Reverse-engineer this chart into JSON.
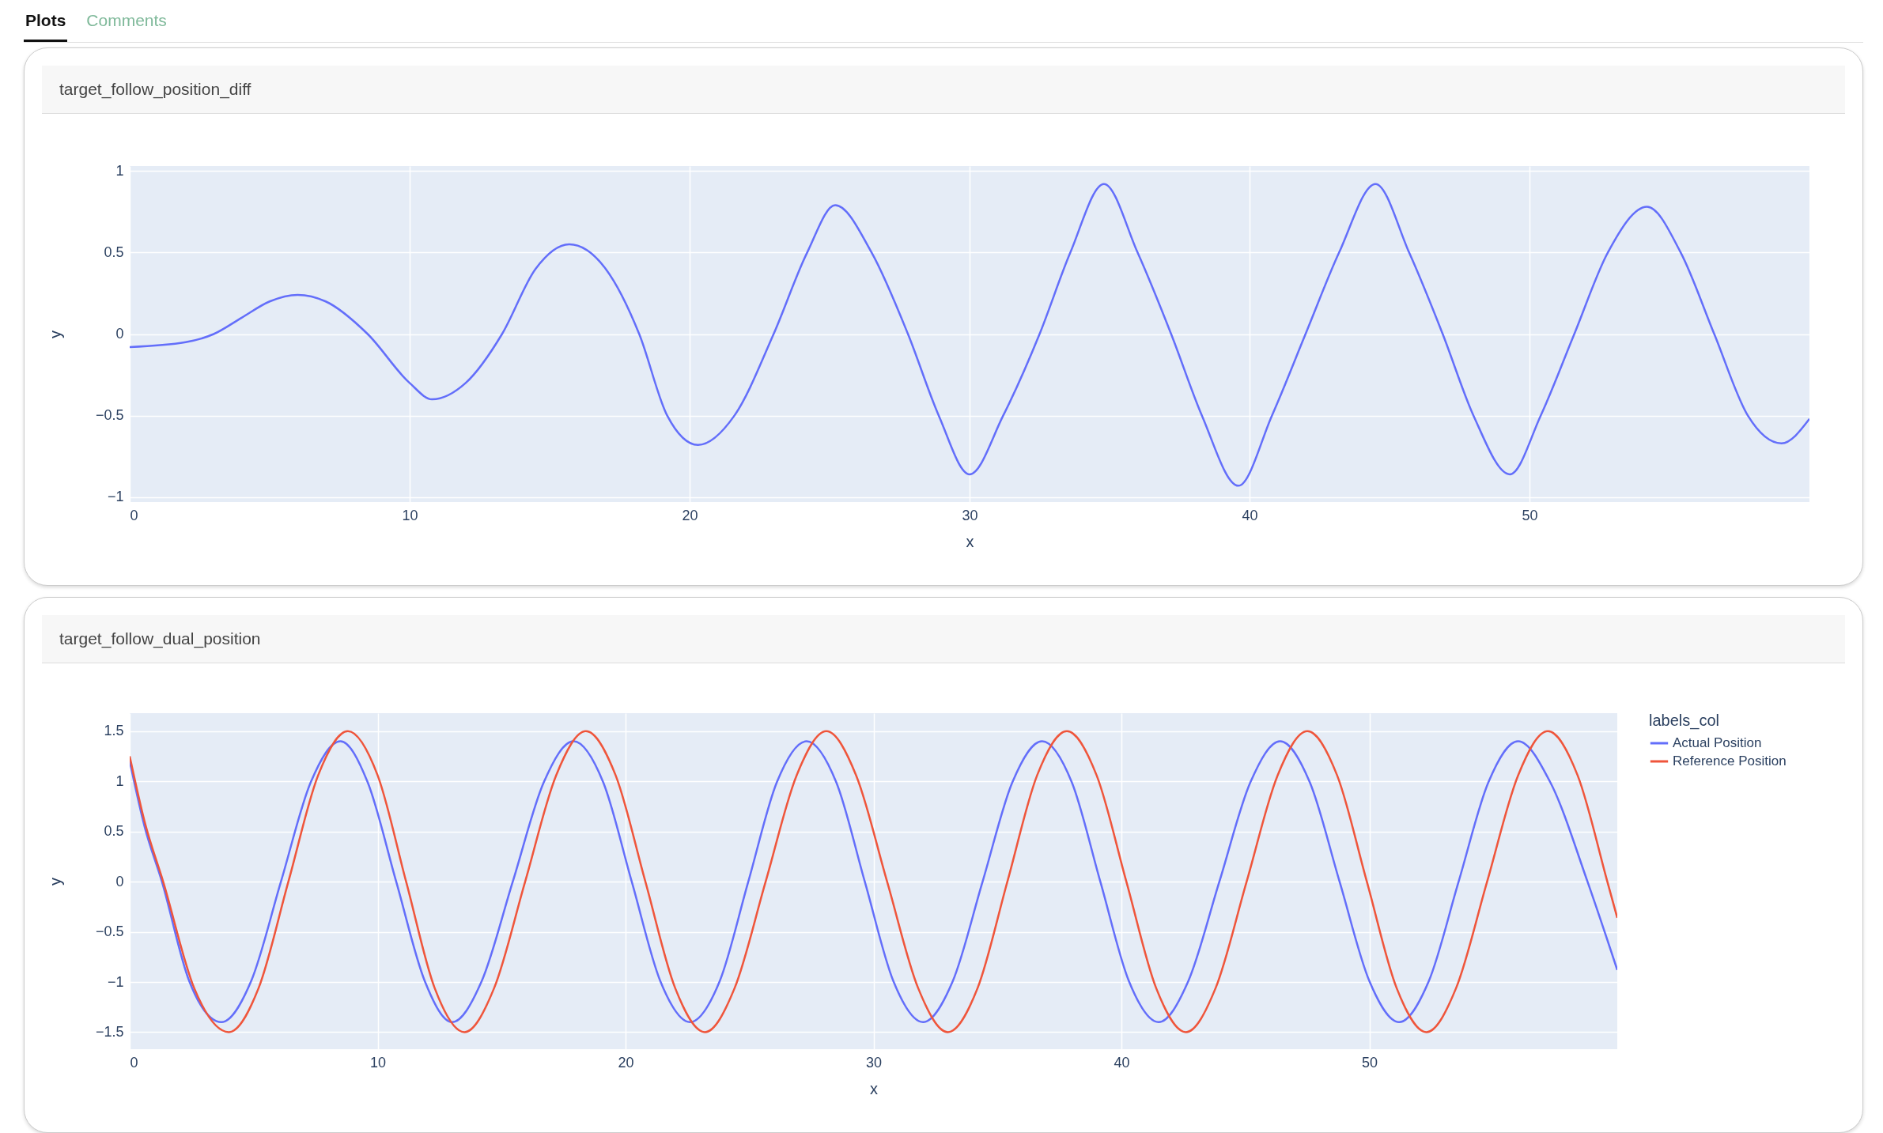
{
  "chart_data": [
    {
      "type": "other",
      "annotations": [
        "Plots",
        "Comments"
      ]
    },
    {
      "type": "line",
      "title": "target_follow_position_diff",
      "xlabel": "x",
      "ylabel": "y",
      "xlim": [
        0,
        60
      ],
      "xticks": [
        0,
        10,
        20,
        30,
        40,
        50
      ],
      "ylim": [
        -1.03,
        1.03
      ],
      "yticks": [
        -1,
        -0.5,
        0,
        0.5,
        1
      ],
      "grid": true,
      "legend": false,
      "series": [
        {
          "color": "#636efa",
          "x": [
            0,
            2,
            3,
            4,
            5,
            6,
            7,
            8.5,
            10,
            10.8,
            12,
            13.3,
            14.5,
            15.7,
            17,
            18.2,
            19.2,
            20.3,
            21.6,
            23,
            24.2,
            25.2,
            26.5,
            27.8,
            28.9,
            30,
            31.2,
            32.5,
            33.6,
            34.8,
            36,
            37.2,
            38.3,
            39.6,
            40.8,
            42,
            43.2,
            44.5,
            45.7,
            46.9,
            48,
            49.3,
            50.4,
            51.6,
            52.8,
            54.2,
            55.4,
            56.6,
            57.8,
            59,
            60
          ],
          "values": [
            -0.08,
            -0.05,
            0,
            0.1,
            0.2,
            0.24,
            0.2,
            0,
            -0.3,
            -0.4,
            -0.3,
            0,
            0.4,
            0.55,
            0.4,
            0,
            -0.5,
            -0.68,
            -0.5,
            0,
            0.5,
            0.79,
            0.5,
            0,
            -0.5,
            -0.86,
            -0.5,
            0,
            0.5,
            0.92,
            0.5,
            0,
            -0.5,
            -0.93,
            -0.5,
            0,
            0.5,
            0.92,
            0.5,
            0,
            -0.5,
            -0.86,
            -0.5,
            0,
            0.5,
            0.78,
            0.5,
            0,
            -0.5,
            -0.67,
            -0.52
          ]
        }
      ]
    },
    {
      "type": "line",
      "title": "target_follow_dual_position",
      "xlabel": "x",
      "ylabel": "y",
      "xlim": [
        0,
        60
      ],
      "xticks": [
        0,
        10,
        20,
        30,
        40,
        50
      ],
      "ylim": [
        -1.67,
        1.68
      ],
      "yticks": [
        -1.5,
        -1,
        -0.5,
        0,
        0.5,
        1,
        1.5
      ],
      "grid": true,
      "legend": "top right",
      "legend_title": "labels_col",
      "series": [
        {
          "name": "Actual Position",
          "color": "#636efa",
          "x": [
            0,
            0.6,
            1.3,
            2.4,
            3.7,
            4.9,
            6.1,
            7.3,
            8.5,
            9.6,
            10.75,
            11.9,
            13,
            14.2,
            15.45,
            16.7,
            17.9,
            19.1,
            20.25,
            21.4,
            22.6,
            23.8,
            24.95,
            26.1,
            27.3,
            28.5,
            29.65,
            30.8,
            32,
            33.2,
            34.4,
            35.6,
            36.8,
            38,
            39.15,
            40.3,
            41.5,
            42.7,
            43.95,
            45.2,
            46.4,
            47.6,
            48.8,
            50,
            51.2,
            52.4,
            53.6,
            54.8,
            56,
            57.3,
            58.8,
            60
          ],
          "values": [
            1.2,
            0.55,
            0,
            -0.99,
            -1.4,
            -0.99,
            0,
            0.99,
            1.4,
            0.99,
            0,
            -0.99,
            -1.4,
            -0.99,
            0,
            0.99,
            1.4,
            0.99,
            0,
            -0.99,
            -1.4,
            -0.99,
            0,
            0.99,
            1.4,
            0.99,
            0,
            -0.99,
            -1.4,
            -0.99,
            0,
            0.99,
            1.4,
            0.99,
            0,
            -0.99,
            -1.4,
            -0.99,
            0,
            0.99,
            1.4,
            0.99,
            0,
            -0.99,
            -1.4,
            -0.99,
            0,
            0.99,
            1.4,
            0.99,
            0,
            -0.88
          ]
        },
        {
          "name": "Reference Position",
          "color": "#ef553b",
          "x": [
            0,
            0.6,
            1.35,
            2.6,
            4,
            5.2,
            6.4,
            7.6,
            8.8,
            10,
            11.15,
            12.3,
            13.5,
            14.7,
            15.95,
            17.2,
            18.4,
            19.6,
            20.8,
            22,
            23.2,
            24.4,
            25.65,
            26.9,
            28.1,
            29.3,
            30.55,
            31.8,
            33,
            34.2,
            35.4,
            36.6,
            37.8,
            39,
            40.2,
            41.4,
            42.6,
            43.8,
            45.05,
            46.3,
            47.5,
            48.7,
            49.9,
            51.1,
            52.3,
            53.5,
            54.75,
            56,
            57.2,
            58.4,
            59.6,
            60
          ],
          "values": [
            1.25,
            0.6,
            0,
            -1.06,
            -1.5,
            -1.06,
            0,
            1.06,
            1.5,
            1.06,
            0,
            -1.06,
            -1.5,
            -1.06,
            0,
            1.06,
            1.5,
            1.06,
            0,
            -1.06,
            -1.5,
            -1.06,
            0,
            1.06,
            1.5,
            1.06,
            0,
            -1.06,
            -1.5,
            -1.06,
            0,
            1.06,
            1.5,
            1.06,
            0,
            -1.06,
            -1.5,
            -1.06,
            0,
            1.06,
            1.5,
            1.06,
            0,
            -1.06,
            -1.5,
            -1.06,
            0,
            1.06,
            1.5,
            1.06,
            0,
            -0.36
          ]
        }
      ]
    }
  ]
}
